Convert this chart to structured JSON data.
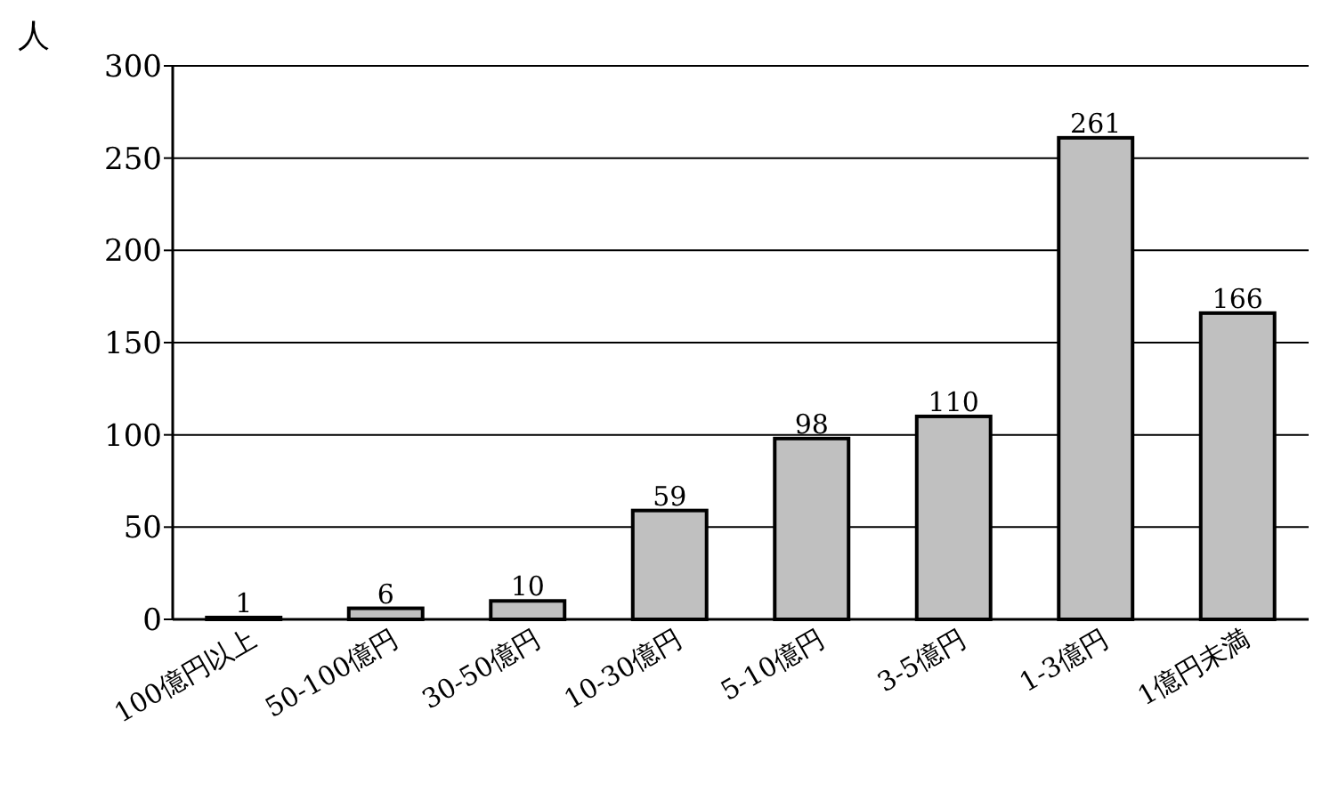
{
  "chart_data": {
    "type": "bar",
    "ylabel": "人",
    "categories": [
      "100億円以上",
      "50-100億円",
      "30-50億円",
      "10-30億円",
      "5-10億円",
      "3-5億円",
      "1-3億円",
      "1億円未満"
    ],
    "values": [
      1,
      6,
      10,
      59,
      98,
      110,
      261,
      166
    ],
    "color": "#c0c0c0",
    "ylim": [
      0,
      300
    ],
    "yticks": [
      0,
      50,
      100,
      150,
      200,
      250,
      300
    ],
    "grid": "y",
    "data_labels": true
  }
}
